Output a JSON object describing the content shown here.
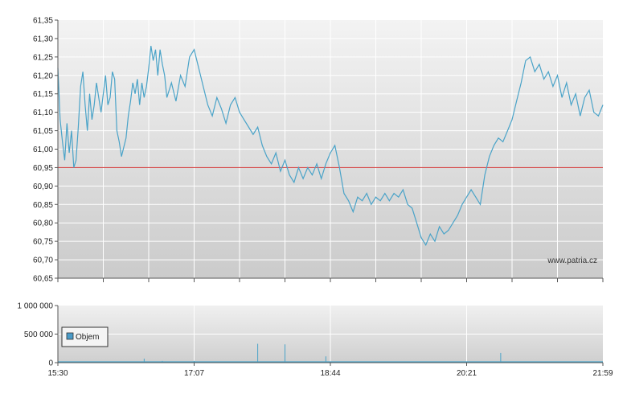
{
  "watermark": "www.patria.cz",
  "colors": {
    "price_line": "#4aa3c8",
    "reference_line": "#d03030",
    "grid": "#ffffff",
    "volume_bar": "#4aa3c8",
    "legend_swatch": "#4a9bc8"
  },
  "chart_data": [
    {
      "type": "line",
      "series": [
        {
          "values": [
            [
              0,
              61.22
            ],
            [
              0.5,
              61.15
            ],
            [
              1,
              61.08
            ],
            [
              2,
              61.02
            ],
            [
              3,
              60.97
            ],
            [
              4,
              61.07
            ],
            [
              5,
              60.99
            ],
            [
              6,
              61.05
            ],
            [
              7,
              60.95
            ],
            [
              8,
              60.97
            ],
            [
              9,
              61.06
            ],
            [
              10,
              61.17
            ],
            [
              11,
              61.21
            ],
            [
              12,
              61.12
            ],
            [
              13,
              61.05
            ],
            [
              14,
              61.15
            ],
            [
              15,
              61.08
            ],
            [
              16,
              61.12
            ],
            [
              17,
              61.18
            ],
            [
              18,
              61.14
            ],
            [
              19,
              61.1
            ],
            [
              20,
              61.15
            ],
            [
              21,
              61.2
            ],
            [
              22,
              61.12
            ],
            [
              23,
              61.14
            ],
            [
              24,
              61.21
            ],
            [
              25,
              61.19
            ],
            [
              26,
              61.05
            ],
            [
              27,
              61.02
            ],
            [
              28,
              60.98
            ],
            [
              30,
              61.03
            ],
            [
              31,
              61.09
            ],
            [
              32,
              61.13
            ],
            [
              33,
              61.18
            ],
            [
              34,
              61.15
            ],
            [
              35,
              61.19
            ],
            [
              36,
              61.12
            ],
            [
              37,
              61.18
            ],
            [
              38,
              61.14
            ],
            [
              39,
              61.17
            ],
            [
              40,
              61.22
            ],
            [
              41,
              61.28
            ],
            [
              42,
              61.24
            ],
            [
              43,
              61.27
            ],
            [
              44,
              61.2
            ],
            [
              45,
              61.27
            ],
            [
              46,
              61.23
            ],
            [
              47,
              61.2
            ],
            [
              48,
              61.14
            ],
            [
              50,
              61.18
            ],
            [
              52,
              61.13
            ],
            [
              54,
              61.2
            ],
            [
              56,
              61.17
            ],
            [
              58,
              61.25
            ],
            [
              60,
              61.27
            ],
            [
              62,
              61.22
            ],
            [
              64,
              61.17
            ],
            [
              66,
              61.12
            ],
            [
              68,
              61.09
            ],
            [
              70,
              61.14
            ],
            [
              72,
              61.11
            ],
            [
              74,
              61.07
            ],
            [
              76,
              61.12
            ],
            [
              78,
              61.14
            ],
            [
              80,
              61.1
            ],
            [
              82,
              61.08
            ],
            [
              84,
              61.06
            ],
            [
              86,
              61.04
            ],
            [
              88,
              61.06
            ],
            [
              90,
              61.01
            ],
            [
              92,
              60.98
            ],
            [
              94,
              60.96
            ],
            [
              96,
              60.99
            ],
            [
              98,
              60.94
            ],
            [
              100,
              60.97
            ],
            [
              102,
              60.93
            ],
            [
              104,
              60.91
            ],
            [
              106,
              60.95
            ],
            [
              108,
              60.92
            ],
            [
              110,
              60.95
            ],
            [
              112,
              60.93
            ],
            [
              114,
              60.96
            ],
            [
              116,
              60.92
            ],
            [
              118,
              60.96
            ],
            [
              120,
              60.99
            ],
            [
              122,
              61.01
            ],
            [
              124,
              60.95
            ],
            [
              126,
              60.88
            ],
            [
              128,
              60.86
            ],
            [
              130,
              60.83
            ],
            [
              132,
              60.87
            ],
            [
              134,
              60.86
            ],
            [
              136,
              60.88
            ],
            [
              138,
              60.85
            ],
            [
              140,
              60.87
            ],
            [
              142,
              60.86
            ],
            [
              144,
              60.88
            ],
            [
              146,
              60.86
            ],
            [
              148,
              60.88
            ],
            [
              150,
              60.87
            ],
            [
              152,
              60.89
            ],
            [
              154,
              60.85
            ],
            [
              156,
              60.84
            ],
            [
              158,
              60.8
            ],
            [
              160,
              60.76
            ],
            [
              162,
              60.74
            ],
            [
              164,
              60.77
            ],
            [
              166,
              60.75
            ],
            [
              168,
              60.79
            ],
            [
              170,
              60.77
            ],
            [
              172,
              60.78
            ],
            [
              174,
              60.8
            ],
            [
              176,
              60.82
            ],
            [
              178,
              60.85
            ],
            [
              180,
              60.87
            ],
            [
              182,
              60.89
            ],
            [
              184,
              60.87
            ],
            [
              186,
              60.85
            ],
            [
              188,
              60.93
            ],
            [
              190,
              60.98
            ],
            [
              192,
              61.01
            ],
            [
              194,
              61.03
            ],
            [
              196,
              61.02
            ],
            [
              198,
              61.05
            ],
            [
              200,
              61.08
            ],
            [
              202,
              61.13
            ],
            [
              204,
              61.18
            ],
            [
              206,
              61.24
            ],
            [
              208,
              61.25
            ],
            [
              210,
              61.21
            ],
            [
              212,
              61.23
            ],
            [
              214,
              61.19
            ],
            [
              216,
              61.21
            ],
            [
              218,
              61.17
            ],
            [
              220,
              61.2
            ],
            [
              222,
              61.14
            ],
            [
              224,
              61.18
            ],
            [
              226,
              61.12
            ],
            [
              228,
              61.15
            ],
            [
              230,
              61.09
            ],
            [
              232,
              61.14
            ],
            [
              234,
              61.16
            ],
            [
              236,
              61.1
            ],
            [
              238,
              61.09
            ],
            [
              240,
              61.12
            ]
          ]
        },
        {
          "values": [
            [
              0,
              60.95
            ],
            [
              240,
              60.95
            ]
          ]
        }
      ],
      "x_ticks": [
        "15:30",
        "17:07",
        "18:44",
        "20:21",
        "21:59"
      ],
      "y_ticks": [
        "60,65",
        "60,70",
        "60,75",
        "60,80",
        "60,85",
        "60,90",
        "60,95",
        "61,00",
        "61,05",
        "61,10",
        "61,15",
        "61,20",
        "61,25",
        "61,30",
        "61,35"
      ],
      "ylim": [
        60.65,
        61.35
      ],
      "xlim": [
        0,
        240
      ],
      "grid": true
    },
    {
      "type": "bar",
      "series": [
        {
          "name": "Objem",
          "values": [
            [
              5,
              8000
            ],
            [
              12,
              10000
            ],
            [
              20,
              6000
            ],
            [
              30,
              12000
            ],
            [
              38,
              70000
            ],
            [
              46,
              30000
            ],
            [
              55,
              15000
            ],
            [
              60,
              30000
            ],
            [
              65,
              9000
            ],
            [
              72,
              10000
            ],
            [
              80,
              8000
            ],
            [
              88,
              330000
            ],
            [
              92,
              20000
            ],
            [
              100,
              320000
            ],
            [
              105,
              15000
            ],
            [
              112,
              8000
            ],
            [
              118,
              110000
            ],
            [
              124,
              12000
            ],
            [
              130,
              7000
            ],
            [
              140,
              6000
            ],
            [
              150,
              9000
            ],
            [
              158,
              12000
            ],
            [
              166,
              8000
            ],
            [
              174,
              10000
            ],
            [
              182,
              9000
            ],
            [
              188,
              14000
            ],
            [
              195,
              170000
            ],
            [
              200,
              10000
            ],
            [
              210,
              8000
            ],
            [
              220,
              9000
            ],
            [
              230,
              7000
            ],
            [
              238,
              11000
            ]
          ]
        }
      ],
      "x_ticks": [
        "15:30",
        "17:07",
        "18:44",
        "20:21",
        "21:59"
      ],
      "y_ticks": [
        "0",
        "500 000",
        "1 000 000"
      ],
      "ylim": [
        0,
        1000000
      ],
      "xlim": [
        0,
        240
      ],
      "grid": true,
      "legend": "inside-left"
    }
  ]
}
